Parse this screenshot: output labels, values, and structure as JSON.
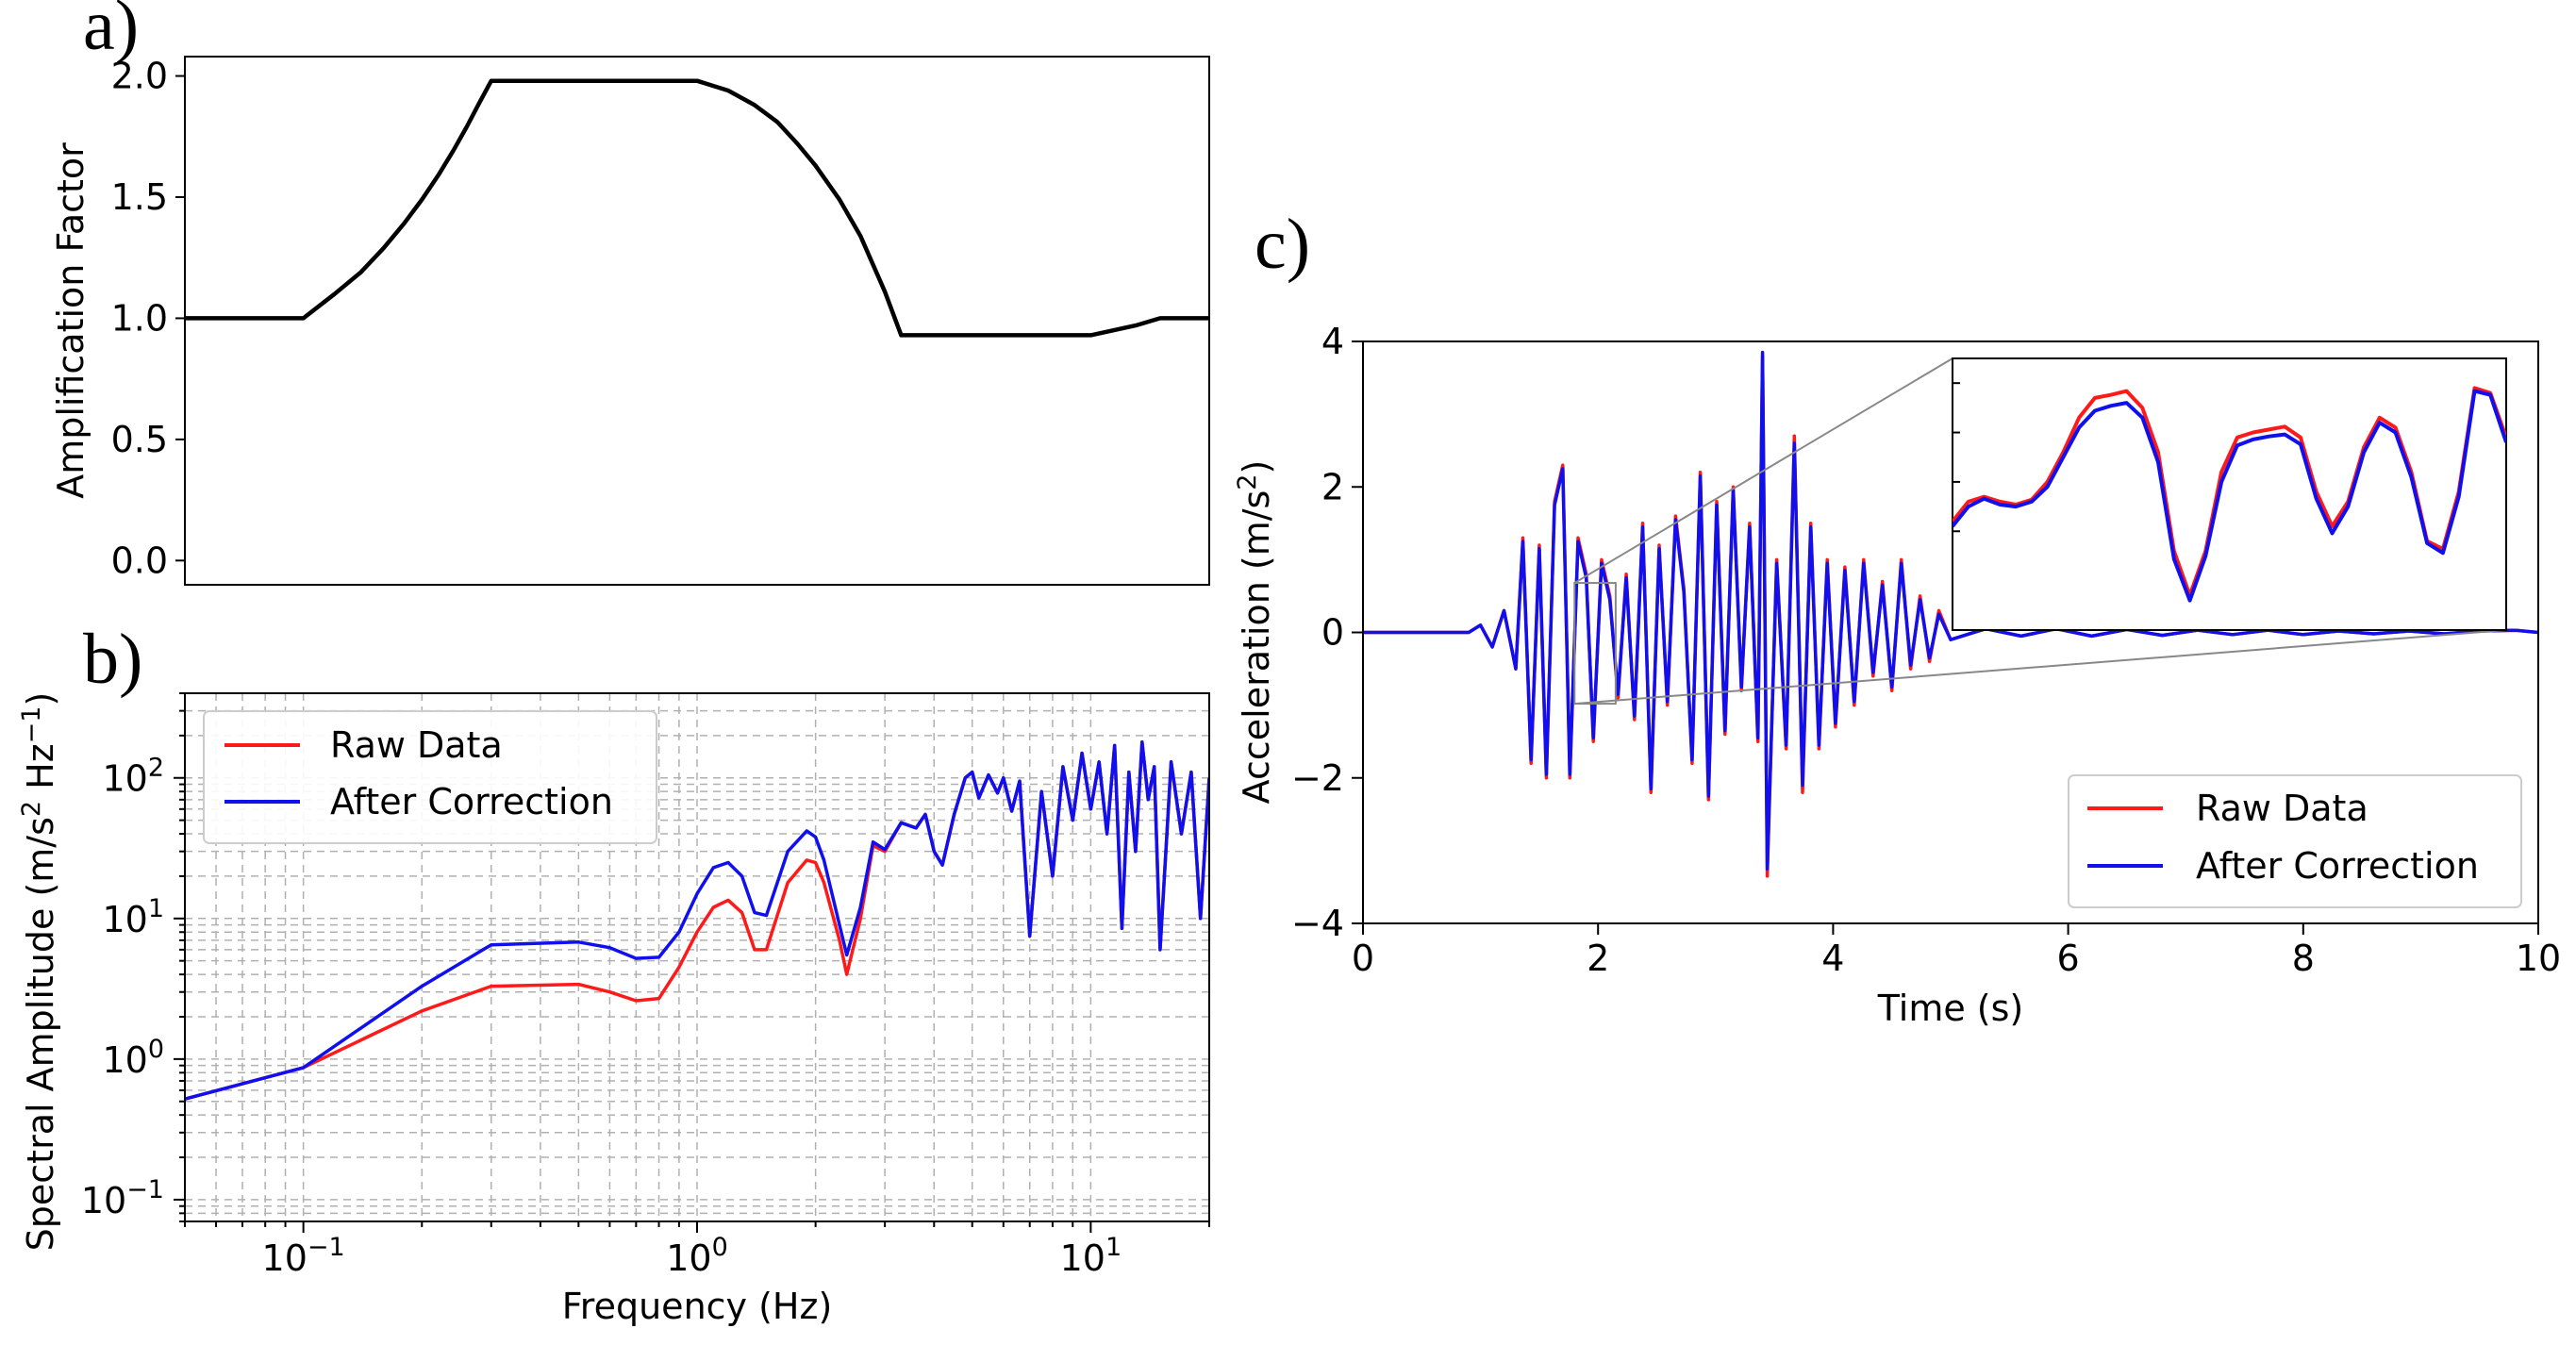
{
  "panel_labels": {
    "a": "a)",
    "b": "b)",
    "c": "c)"
  },
  "colors": {
    "raw": "#ff1a1a",
    "corrected": "#1010ee",
    "curve": "#000000",
    "grid": "#b0b0b0"
  },
  "chart_data": [
    {
      "id": "a",
      "type": "line",
      "title": "",
      "xlabel": "",
      "ylabel": "Amplification Factor",
      "xscale": "log",
      "xlim": [
        0.05,
        20
      ],
      "ylim": [
        -0.1,
        2.08
      ],
      "yticks": [
        0.0,
        0.5,
        1.0,
        1.5,
        2.0
      ],
      "ytick_labels": [
        "0.0",
        "0.5",
        "1.0",
        "1.5",
        "2.0"
      ],
      "series": [
        {
          "name": "Amplification",
          "x": [
            0.05,
            0.1,
            0.12,
            0.14,
            0.16,
            0.18,
            0.2,
            0.22,
            0.24,
            0.26,
            0.28,
            0.3,
            0.5,
            0.7,
            1.0,
            1.2,
            1.4,
            1.6,
            1.8,
            2.0,
            2.3,
            2.6,
            3.0,
            3.3,
            5,
            7,
            10,
            13,
            15,
            20
          ],
          "y": [
            1.0,
            1.0,
            1.1,
            1.19,
            1.29,
            1.39,
            1.49,
            1.59,
            1.69,
            1.79,
            1.89,
            1.98,
            1.98,
            1.98,
            1.98,
            1.94,
            1.88,
            1.81,
            1.72,
            1.63,
            1.49,
            1.34,
            1.11,
            0.93,
            0.93,
            0.93,
            0.93,
            0.97,
            1.0,
            1.0
          ]
        }
      ]
    },
    {
      "id": "b",
      "type": "line",
      "title": "",
      "xlabel": "Frequency (Hz)",
      "ylabel": "Spectral Amplitude (m/s² Hz⁻¹)",
      "xscale": "log",
      "yscale": "log",
      "xlim": [
        0.05,
        20
      ],
      "ylim": [
        0.07,
        400
      ],
      "xticks": [
        {
          "value": 0.1,
          "base": "10",
          "exp": "−1"
        },
        {
          "value": 1,
          "base": "10",
          "exp": "0"
        },
        {
          "value": 10,
          "base": "10",
          "exp": "1"
        }
      ],
      "yticks": [
        {
          "value": 0.1,
          "base": "10",
          "exp": "−1"
        },
        {
          "value": 1,
          "base": "10",
          "exp": "0"
        },
        {
          "value": 10,
          "base": "10",
          "exp": "1"
        },
        {
          "value": 100,
          "base": "10",
          "exp": "2"
        }
      ],
      "grid": true,
      "legend": {
        "position": "upper-left",
        "entries": [
          "Raw Data",
          "After Correction"
        ]
      },
      "series": [
        {
          "name": "Raw Data",
          "color": "#ff1a1a",
          "x": [
            0.05,
            0.1,
            0.2,
            0.3,
            0.5,
            0.6,
            0.7,
            0.8,
            0.9,
            1.0,
            1.1,
            1.2,
            1.3,
            1.4,
            1.5,
            1.7,
            1.9,
            2.0,
            2.1,
            2.3,
            2.4,
            2.6,
            2.8,
            3.0,
            3.3,
            3.6,
            3.8,
            4.0,
            4.2,
            4.5,
            4.8,
            5.0,
            5.2,
            5.5,
            5.8,
            6.0,
            6.3,
            6.6,
            7.0,
            7.5,
            8.0,
            8.5,
            9.0,
            9.5,
            10,
            10.5,
            11,
            11.5,
            12,
            12.5,
            13,
            13.5,
            14,
            14.5,
            15,
            16,
            17,
            18,
            19,
            20
          ],
          "y": [
            0.52,
            0.87,
            2.2,
            3.3,
            3.4,
            3.0,
            2.6,
            2.7,
            4.5,
            8.0,
            12,
            13.5,
            11,
            6.0,
            6.0,
            18,
            26,
            25,
            18,
            7.0,
            4.0,
            10,
            33,
            30,
            48,
            44,
            55,
            30,
            24,
            55,
            100,
            110,
            72,
            105,
            78,
            100,
            58,
            95,
            7.5,
            80,
            20,
            120,
            50,
            150,
            60,
            130,
            40,
            170,
            8.5,
            110,
            30,
            180,
            70,
            120,
            6.0,
            130,
            40,
            110,
            10,
            100
          ]
        },
        {
          "name": "After Correction",
          "color": "#1010ee",
          "x": [
            0.05,
            0.1,
            0.2,
            0.3,
            0.5,
            0.6,
            0.7,
            0.8,
            0.9,
            1.0,
            1.1,
            1.2,
            1.3,
            1.4,
            1.5,
            1.7,
            1.9,
            2.0,
            2.1,
            2.3,
            2.4,
            2.6,
            2.8,
            3.0,
            3.3,
            3.6,
            3.8,
            4.0,
            4.2,
            4.5,
            4.8,
            5.0,
            5.2,
            5.5,
            5.8,
            6.0,
            6.3,
            6.6,
            7.0,
            7.5,
            8.0,
            8.5,
            9.0,
            9.5,
            10,
            10.5,
            11,
            11.5,
            12,
            12.5,
            13,
            13.5,
            14,
            14.5,
            15,
            16,
            17,
            18,
            19,
            20
          ],
          "y": [
            0.52,
            0.87,
            3.3,
            6.5,
            6.8,
            6.2,
            5.2,
            5.3,
            8.0,
            15,
            23,
            25,
            20,
            11,
            10.5,
            30,
            42,
            38,
            26,
            9.0,
            5.5,
            12,
            35,
            31,
            48,
            44,
            55,
            30,
            24,
            55,
            100,
            110,
            72,
            105,
            78,
            100,
            58,
            95,
            7.5,
            80,
            20,
            120,
            50,
            150,
            60,
            130,
            40,
            170,
            8.5,
            110,
            30,
            180,
            70,
            120,
            6.0,
            130,
            40,
            110,
            10,
            100
          ]
        }
      ]
    },
    {
      "id": "c",
      "type": "line",
      "title": "",
      "xlabel": "Time (s)",
      "ylabel": "Acceleration (m/s²)",
      "xlim": [
        0,
        10
      ],
      "ylim": [
        -4,
        4
      ],
      "xticks": [
        0,
        2,
        4,
        6,
        8,
        10
      ],
      "xtick_labels": [
        "0",
        "2",
        "4",
        "6",
        "8",
        "10"
      ],
      "yticks": [
        -4,
        -2,
        0,
        2,
        4
      ],
      "ytick_labels": [
        "−4",
        "−2",
        "0",
        "2",
        "4"
      ],
      "grid": false,
      "legend": {
        "position": "lower-right",
        "entries": [
          "Raw Data",
          "After Correction"
        ]
      },
      "series": [
        {
          "name": "Raw Data",
          "color": "#ff1a1a",
          "t": [
            0,
            0.9,
            1.0,
            1.1,
            1.2,
            1.3,
            1.36,
            1.43,
            1.5,
            1.56,
            1.63,
            1.7,
            1.76,
            1.83,
            1.9,
            1.96,
            2.03,
            2.1,
            2.17,
            2.24,
            2.31,
            2.38,
            2.45,
            2.52,
            2.59,
            2.66,
            2.73,
            2.8,
            2.87,
            2.94,
            3.01,
            3.08,
            3.15,
            3.22,
            3.29,
            3.36,
            3.4,
            3.44,
            3.52,
            3.6,
            3.67,
            3.74,
            3.81,
            3.88,
            3.95,
            4.02,
            4.1,
            4.18,
            4.26,
            4.34,
            4.42,
            4.5,
            4.58,
            4.66,
            4.74,
            4.82,
            4.9,
            5.0,
            5.3,
            5.6,
            5.9,
            6.2,
            6.5,
            6.8,
            7.1,
            7.4,
            7.7,
            8.0,
            8.3,
            8.6,
            8.9,
            9.2,
            9.5,
            9.8,
            10.0
          ],
          "a": [
            0,
            0,
            0.1,
            -0.2,
            0.3,
            -0.5,
            1.3,
            -1.8,
            1.2,
            -2.0,
            1.8,
            2.3,
            -2.0,
            1.3,
            0.8,
            -1.5,
            1.0,
            0.5,
            -0.9,
            0.8,
            -1.2,
            1.5,
            -2.2,
            1.2,
            -1.0,
            1.6,
            0.6,
            -1.8,
            2.2,
            -2.3,
            1.8,
            -1.4,
            2.0,
            -0.8,
            1.5,
            -1.5,
            3.8,
            -3.35,
            1.0,
            -1.6,
            2.7,
            -2.2,
            1.5,
            -1.6,
            1.0,
            -1.3,
            0.9,
            -1.0,
            1.0,
            -0.6,
            0.7,
            -0.8,
            1.0,
            -0.5,
            0.5,
            -0.4,
            0.3,
            -0.1,
            0.05,
            -0.05,
            0.05,
            -0.05,
            0.04,
            -0.04,
            0.03,
            -0.03,
            0.03,
            -0.03,
            0.02,
            -0.02,
            0.02,
            -0.02,
            0.02,
            0.03,
            0
          ]
        },
        {
          "name": "After Correction",
          "color": "#1010ee",
          "t": [
            0,
            0.9,
            1.0,
            1.1,
            1.2,
            1.3,
            1.36,
            1.43,
            1.5,
            1.56,
            1.63,
            1.7,
            1.76,
            1.83,
            1.9,
            1.96,
            2.03,
            2.1,
            2.17,
            2.24,
            2.31,
            2.38,
            2.45,
            2.52,
            2.59,
            2.66,
            2.73,
            2.8,
            2.87,
            2.94,
            3.01,
            3.08,
            3.15,
            3.22,
            3.29,
            3.36,
            3.4,
            3.44,
            3.52,
            3.6,
            3.67,
            3.74,
            3.81,
            3.88,
            3.95,
            4.02,
            4.1,
            4.18,
            4.26,
            4.34,
            4.42,
            4.5,
            4.58,
            4.66,
            4.74,
            4.82,
            4.9,
            5.0,
            5.3,
            5.6,
            5.9,
            6.2,
            6.5,
            6.8,
            7.1,
            7.4,
            7.7,
            8.0,
            8.3,
            8.6,
            8.9,
            9.2,
            9.5,
            9.8,
            10.0
          ],
          "a": [
            0,
            0,
            0.1,
            -0.2,
            0.3,
            -0.5,
            1.25,
            -1.75,
            1.15,
            -1.95,
            1.75,
            2.25,
            -1.95,
            1.25,
            0.75,
            -1.45,
            0.95,
            0.45,
            -0.85,
            0.75,
            -1.15,
            1.45,
            -2.15,
            1.15,
            -0.95,
            1.55,
            0.55,
            -1.75,
            2.15,
            -2.25,
            1.75,
            -1.35,
            1.95,
            -0.75,
            1.45,
            -1.45,
            3.85,
            -3.25,
            0.95,
            -1.55,
            2.6,
            -2.1,
            1.45,
            -1.55,
            0.95,
            -1.25,
            0.85,
            -0.95,
            0.95,
            -0.55,
            0.65,
            -0.75,
            0.95,
            -0.45,
            0.45,
            -0.35,
            0.25,
            -0.1,
            0.05,
            -0.05,
            0.05,
            -0.05,
            0.04,
            -0.04,
            0.03,
            -0.03,
            0.03,
            -0.03,
            0.02,
            -0.02,
            0.02,
            -0.02,
            0.02,
            0.03,
            0
          ]
        }
      ],
      "inset": {
        "zoom_region": {
          "xlim": [
            1.8,
            2.15
          ],
          "ylim": [
            -0.98,
            0.68
          ]
        },
        "series": [
          {
            "name": "Raw Data",
            "color": "#ff1a1a",
            "y": [
              0.1,
              0.3,
              0.35,
              0.3,
              0.27,
              0.32,
              0.5,
              0.8,
              1.15,
              1.35,
              1.38,
              1.42,
              1.25,
              0.8,
              -0.2,
              -0.65,
              -0.2,
              0.6,
              0.95,
              1.0,
              1.03,
              1.06,
              0.95,
              0.4,
              0.05,
              0.3,
              0.85,
              1.15,
              1.05,
              0.6,
              -0.1,
              -0.18,
              0.4,
              1.45,
              1.4,
              0.95
            ]
          },
          {
            "name": "After Correction",
            "color": "#1010ee",
            "y": [
              0.05,
              0.25,
              0.33,
              0.27,
              0.25,
              0.3,
              0.45,
              0.75,
              1.05,
              1.22,
              1.27,
              1.3,
              1.15,
              0.7,
              -0.28,
              -0.7,
              -0.25,
              0.5,
              0.87,
              0.93,
              0.96,
              0.98,
              0.88,
              0.33,
              -0.02,
              0.25,
              0.8,
              1.1,
              1.0,
              0.55,
              -0.12,
              -0.22,
              0.35,
              1.42,
              1.38,
              0.9
            ]
          }
        ]
      }
    }
  ]
}
